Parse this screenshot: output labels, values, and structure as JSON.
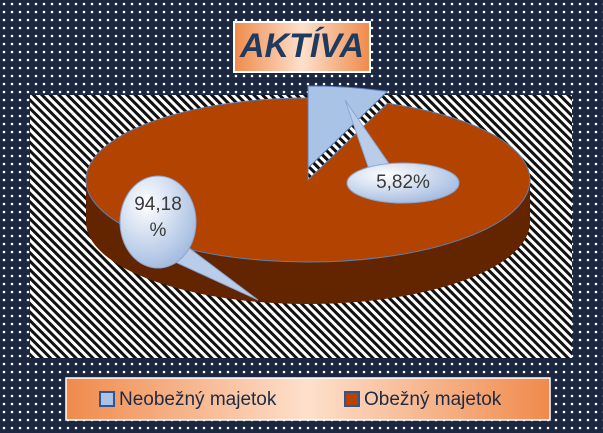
{
  "chart_data": {
    "type": "pie",
    "title": "AKTÍVA",
    "categories": [
      "Neobežný majetok",
      "Obežný majetok"
    ],
    "values": [
      5.82,
      94.18
    ],
    "value_labels": [
      "5,82%",
      "94,18 %"
    ],
    "colors": [
      "#a9c3e6",
      "#b24300"
    ],
    "legend": "bottom"
  }
}
